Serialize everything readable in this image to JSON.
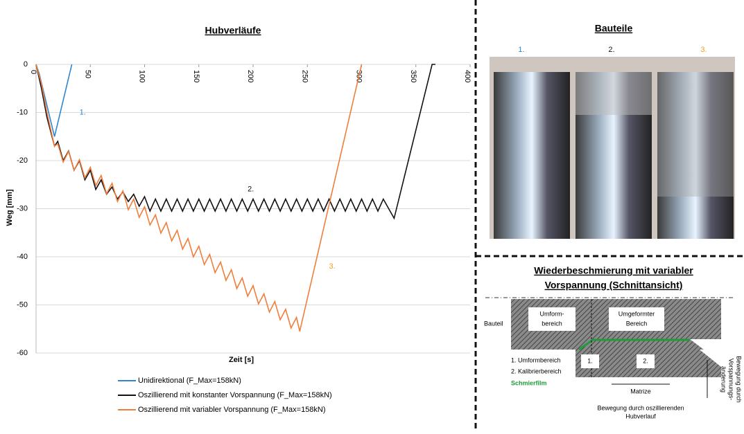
{
  "chart_data": {
    "type": "line",
    "title": "Hubverläufe",
    "x_label": "Zeit [s]",
    "y_label": "Weg [mm]",
    "xlim": [
      0,
      400
    ],
    "xticks": [
      0,
      50,
      100,
      150,
      200,
      250,
      300,
      350,
      400
    ],
    "ylim": [
      -60,
      0
    ],
    "yticks": [
      0,
      -10,
      -20,
      -30,
      -40,
      -50,
      -60
    ],
    "grid": true,
    "legend": "bottom",
    "series": [
      {
        "name": "Unidirektional (F_Max=158kN)",
        "color": "#2e86d0",
        "x": [
          0,
          3,
          17,
          33
        ],
        "values": [
          0,
          -2,
          -15,
          0
        ]
      },
      {
        "name": "Oszillierend mit konstanter Vorspannung (F_Max=158kN)",
        "color": "#111111",
        "x": [
          0,
          5,
          10,
          17,
          20,
          25,
          30,
          35,
          40,
          45,
          50,
          55,
          60,
          65,
          70,
          75,
          80,
          85,
          90,
          95,
          100,
          105,
          110,
          115,
          120,
          125,
          130,
          135,
          140,
          145,
          150,
          155,
          160,
          165,
          170,
          175,
          180,
          185,
          190,
          195,
          200,
          205,
          210,
          215,
          220,
          225,
          230,
          235,
          240,
          245,
          250,
          255,
          260,
          265,
          270,
          275,
          280,
          285,
          290,
          295,
          300,
          305,
          310,
          315,
          320,
          325,
          330,
          365,
          368
        ],
        "values": [
          0,
          -5,
          -11,
          -17,
          -16,
          -20,
          -18,
          -22,
          -20,
          -24,
          -22,
          -26,
          -24,
          -27,
          -25.5,
          -28,
          -26.5,
          -28.5,
          -27,
          -29.5,
          -27.5,
          -30.5,
          -28,
          -30.5,
          -28,
          -30.5,
          -28,
          -30.5,
          -28,
          -30.5,
          -28,
          -30.5,
          -28,
          -30.5,
          -28,
          -30.5,
          -28,
          -30.5,
          -28,
          -30.5,
          -28,
          -30.5,
          -28,
          -30.5,
          -28,
          -30.5,
          -28,
          -30.5,
          -28,
          -30.5,
          -28,
          -30.5,
          -28,
          -30.5,
          -28,
          -30.5,
          -28,
          -30.5,
          -28,
          -30.5,
          -28,
          -30.5,
          -28,
          -30.5,
          -28,
          -30,
          -32,
          0,
          0
        ]
      },
      {
        "name": "Oszillierend mit variabler Vorspannung (F_Max=158kN)",
        "color": "#f07d3a",
        "x": [
          0,
          5,
          10,
          17,
          20,
          25,
          30,
          35,
          40,
          45,
          50,
          55,
          60,
          65,
          70,
          75,
          80,
          85,
          90,
          95,
          100,
          105,
          110,
          115,
          120,
          125,
          130,
          135,
          140,
          145,
          150,
          155,
          160,
          165,
          170,
          175,
          180,
          185,
          190,
          195,
          200,
          205,
          210,
          215,
          220,
          225,
          230,
          235,
          240,
          243,
          300
        ],
        "values": [
          0,
          -4,
          -10,
          -17,
          -16.5,
          -20.3,
          -18.1,
          -22,
          -19.8,
          -23.6,
          -21.4,
          -25.2,
          -23.1,
          -26.9,
          -24.7,
          -28.5,
          -26.3,
          -30.2,
          -28,
          -31.8,
          -29.6,
          -33.4,
          -31.3,
          -35.1,
          -32.9,
          -36.7,
          -34.5,
          -38.4,
          -36.2,
          -40,
          -37.8,
          -41.6,
          -39.5,
          -43.3,
          -41.1,
          -44.9,
          -42.7,
          -46.6,
          -44.4,
          -48.2,
          -46,
          -49.8,
          -47.7,
          -51.5,
          -49.3,
          -53.1,
          -50.9,
          -54.8,
          -52.6,
          -55.5,
          0
        ]
      }
    ],
    "annotations": [
      {
        "text": "1.",
        "color": "#2e86d0",
        "x": 40,
        "y": -10
      },
      {
        "text": "2.",
        "color": "#111111",
        "x": 195,
        "y": -26
      },
      {
        "text": "3.",
        "color": "#f0a020",
        "x": 270,
        "y": -42
      }
    ]
  },
  "photo_panel": {
    "title": "Bauteile",
    "labels": [
      {
        "text": "1.",
        "color": "#2e86d0"
      },
      {
        "text": "2.",
        "color": "#111111"
      },
      {
        "text": "3.",
        "color": "#f0a020"
      }
    ]
  },
  "diagram_panel": {
    "title_lines": [
      "Wiederbeschmierung mit variabler",
      "Vorspannung (Schnittansicht)"
    ],
    "part": "Bauteil",
    "zone_1": [
      "Umform-",
      "bereich"
    ],
    "zone_2": [
      "Umgeformter",
      "Bereich"
    ],
    "legend_1": "1. Umformbereich",
    "legend_2": "2. Kalibrierbereich",
    "film": "Schmierfilm",
    "die_1": "1.",
    "die_2": "2.",
    "die": "Matrize",
    "motion_preload": [
      "Bewegung durch",
      "Vorspannungs-",
      "änderung"
    ],
    "motion_stroke": [
      "Bewegung durch oszillierenden",
      "Hubverlauf"
    ]
  }
}
